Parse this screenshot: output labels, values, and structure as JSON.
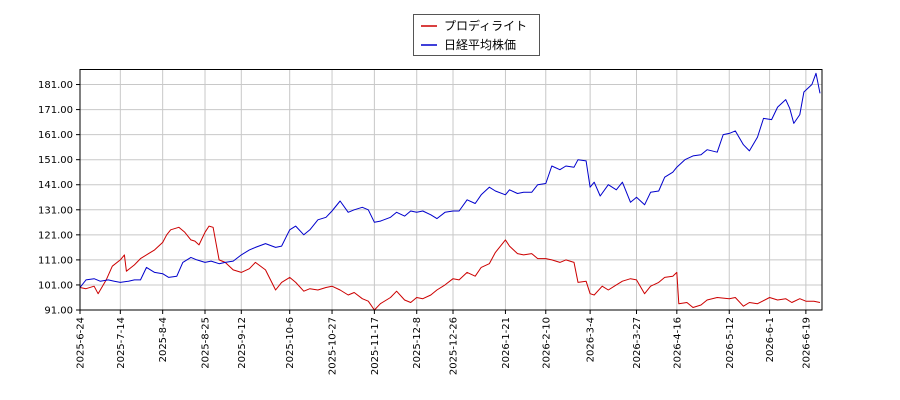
{
  "chart_data": {
    "type": "line",
    "title": "",
    "xlabel": "",
    "ylabel": "",
    "ylim": [
      91,
      187
    ],
    "yticks": [
      "91.00",
      "101.00",
      "111.00",
      "121.00",
      "131.00",
      "141.00",
      "151.00",
      "161.00",
      "171.00",
      "181.00"
    ],
    "xlim": [
      "2025-06-24",
      "2026-06-27"
    ],
    "xticks": [
      "2025-6-24",
      "2025-7-14",
      "2025-8-4",
      "2025-8-25",
      "2025-9-12",
      "2025-10-6",
      "2025-10-27",
      "2025-11-17",
      "2025-12-8",
      "2025-12-26",
      "2026-1-21",
      "2026-2-10",
      "2026-3-4",
      "2026-3-27",
      "2026-4-16",
      "2026-5-12",
      "2026-6-1",
      "2026-6-19"
    ],
    "grid": true,
    "legend": "top-center",
    "series": [
      {
        "name": "プロディライト",
        "color": "#cc0000",
        "points": [
          [
            "2025-06-24",
            100.0
          ],
          [
            "2025-06-27",
            99.5
          ],
          [
            "2025-07-01",
            100.5
          ],
          [
            "2025-07-03",
            97.5
          ],
          [
            "2025-07-07",
            103.0
          ],
          [
            "2025-07-10",
            108.5
          ],
          [
            "2025-07-14",
            111.0
          ],
          [
            "2025-07-16",
            113.0
          ],
          [
            "2025-07-17",
            106.5
          ],
          [
            "2025-07-21",
            109.0
          ],
          [
            "2025-07-24",
            111.5
          ],
          [
            "2025-07-28",
            113.5
          ],
          [
            "2025-07-31",
            115.0
          ],
          [
            "2025-08-04",
            118.0
          ],
          [
            "2025-08-06",
            121.0
          ],
          [
            "2025-08-08",
            123.0
          ],
          [
            "2025-08-12",
            124.0
          ],
          [
            "2025-08-15",
            122.0
          ],
          [
            "2025-08-18",
            119.0
          ],
          [
            "2025-08-20",
            118.5
          ],
          [
            "2025-08-22",
            117.0
          ],
          [
            "2025-08-25",
            122.0
          ],
          [
            "2025-08-27",
            124.5
          ],
          [
            "2025-08-29",
            124.0
          ],
          [
            "2025-09-01",
            111.0
          ],
          [
            "2025-09-04",
            110.0
          ],
          [
            "2025-09-08",
            107.0
          ],
          [
            "2025-09-12",
            106.0
          ],
          [
            "2025-09-16",
            107.5
          ],
          [
            "2025-09-19",
            110.0
          ],
          [
            "2025-09-24",
            107.0
          ],
          [
            "2025-09-29",
            99.0
          ],
          [
            "2025-10-02",
            102.0
          ],
          [
            "2025-10-06",
            104.0
          ],
          [
            "2025-10-09",
            102.0
          ],
          [
            "2025-10-13",
            98.5
          ],
          [
            "2025-10-16",
            99.5
          ],
          [
            "2025-10-20",
            99.0
          ],
          [
            "2025-10-24",
            100.0
          ],
          [
            "2025-10-27",
            100.5
          ],
          [
            "2025-10-31",
            99.0
          ],
          [
            "2025-11-04",
            97.0
          ],
          [
            "2025-11-07",
            98.0
          ],
          [
            "2025-11-11",
            95.5
          ],
          [
            "2025-11-14",
            94.5
          ],
          [
            "2025-11-17",
            91.0
          ],
          [
            "2025-11-20",
            93.5
          ],
          [
            "2025-11-25",
            96.0
          ],
          [
            "2025-11-28",
            98.5
          ],
          [
            "2025-12-02",
            95.0
          ],
          [
            "2025-12-05",
            94.0
          ],
          [
            "2025-12-08",
            96.0
          ],
          [
            "2025-12-11",
            95.5
          ],
          [
            "2025-12-15",
            97.0
          ],
          [
            "2025-12-18",
            99.0
          ],
          [
            "2025-12-22",
            101.0
          ],
          [
            "2025-12-26",
            103.5
          ],
          [
            "2025-12-29",
            103.0
          ],
          [
            "2026-01-02",
            106.0
          ],
          [
            "2026-01-06",
            104.5
          ],
          [
            "2026-01-09",
            108.0
          ],
          [
            "2026-01-13",
            109.5
          ],
          [
            "2026-01-16",
            114.0
          ],
          [
            "2026-01-21",
            119.0
          ],
          [
            "2026-01-23",
            116.5
          ],
          [
            "2026-01-27",
            113.5
          ],
          [
            "2026-01-30",
            113.0
          ],
          [
            "2026-02-03",
            113.5
          ],
          [
            "2026-02-06",
            111.5
          ],
          [
            "2026-02-10",
            111.5
          ],
          [
            "2026-02-13",
            111.0
          ],
          [
            "2026-02-17",
            110.0
          ],
          [
            "2026-02-20",
            111.0
          ],
          [
            "2026-02-24",
            110.0
          ],
          [
            "2026-02-26",
            102.0
          ],
          [
            "2026-03-02",
            102.5
          ],
          [
            "2026-03-04",
            97.5
          ],
          [
            "2026-03-06",
            97.0
          ],
          [
            "2026-03-10",
            100.5
          ],
          [
            "2026-03-13",
            99.0
          ],
          [
            "2026-03-17",
            101.0
          ],
          [
            "2026-03-20",
            102.5
          ],
          [
            "2026-03-24",
            103.5
          ],
          [
            "2026-03-27",
            103.0
          ],
          [
            "2026-03-31",
            97.5
          ],
          [
            "2026-04-03",
            100.5
          ],
          [
            "2026-04-07",
            102.0
          ],
          [
            "2026-04-10",
            104.0
          ],
          [
            "2026-04-14",
            104.5
          ],
          [
            "2026-04-16",
            106.0
          ],
          [
            "2026-04-17",
            93.5
          ],
          [
            "2026-04-21",
            94.0
          ],
          [
            "2026-04-24",
            92.0
          ],
          [
            "2026-04-28",
            93.0
          ],
          [
            "2026-05-01",
            95.0
          ],
          [
            "2026-05-06",
            96.0
          ],
          [
            "2026-05-12",
            95.5
          ],
          [
            "2026-05-15",
            96.0
          ],
          [
            "2026-05-19",
            92.5
          ],
          [
            "2026-05-22",
            94.0
          ],
          [
            "2026-05-26",
            93.5
          ],
          [
            "2026-06-01",
            96.0
          ],
          [
            "2026-06-05",
            95.0
          ],
          [
            "2026-06-09",
            95.5
          ],
          [
            "2026-06-12",
            94.0
          ],
          [
            "2026-06-16",
            95.5
          ],
          [
            "2026-06-19",
            94.5
          ],
          [
            "2026-06-23",
            94.5
          ],
          [
            "2026-06-26",
            94.0
          ]
        ]
      },
      {
        "name": "日経平均株価",
        "color": "#0000cc",
        "points": [
          [
            "2025-06-24",
            100.0
          ],
          [
            "2025-06-27",
            103.0
          ],
          [
            "2025-07-01",
            103.5
          ],
          [
            "2025-07-04",
            102.5
          ],
          [
            "2025-07-08",
            103.0
          ],
          [
            "2025-07-11",
            102.5
          ],
          [
            "2025-07-14",
            102.0
          ],
          [
            "2025-07-18",
            102.5
          ],
          [
            "2025-07-21",
            103.0
          ],
          [
            "2025-07-24",
            103.0
          ],
          [
            "2025-07-27",
            108.0
          ],
          [
            "2025-07-31",
            106.0
          ],
          [
            "2025-08-04",
            105.5
          ],
          [
            "2025-08-07",
            104.0
          ],
          [
            "2025-08-11",
            104.5
          ],
          [
            "2025-08-14",
            110.0
          ],
          [
            "2025-08-18",
            112.0
          ],
          [
            "2025-08-21",
            111.0
          ],
          [
            "2025-08-25",
            110.0
          ],
          [
            "2025-08-28",
            110.5
          ],
          [
            "2025-09-01",
            109.5
          ],
          [
            "2025-09-04",
            110.0
          ],
          [
            "2025-09-08",
            110.5
          ],
          [
            "2025-09-12",
            113.0
          ],
          [
            "2025-09-16",
            115.0
          ],
          [
            "2025-09-19",
            116.0
          ],
          [
            "2025-09-24",
            117.5
          ],
          [
            "2025-09-29",
            116.0
          ],
          [
            "2025-10-02",
            116.5
          ],
          [
            "2025-10-06",
            123.0
          ],
          [
            "2025-10-09",
            124.5
          ],
          [
            "2025-10-13",
            121.0
          ],
          [
            "2025-10-16",
            123.0
          ],
          [
            "2025-10-20",
            127.0
          ],
          [
            "2025-10-24",
            128.0
          ],
          [
            "2025-10-27",
            130.5
          ],
          [
            "2025-10-31",
            134.5
          ],
          [
            "2025-11-04",
            130.0
          ],
          [
            "2025-11-07",
            131.0
          ],
          [
            "2025-11-11",
            132.0
          ],
          [
            "2025-11-14",
            131.0
          ],
          [
            "2025-11-17",
            126.0
          ],
          [
            "2025-11-20",
            126.5
          ],
          [
            "2025-11-25",
            128.0
          ],
          [
            "2025-11-28",
            130.0
          ],
          [
            "2025-12-02",
            128.5
          ],
          [
            "2025-12-05",
            130.5
          ],
          [
            "2025-12-08",
            130.0
          ],
          [
            "2025-12-11",
            130.5
          ],
          [
            "2025-12-15",
            129.0
          ],
          [
            "2025-12-18",
            127.5
          ],
          [
            "2025-12-22",
            130.0
          ],
          [
            "2025-12-26",
            130.5
          ],
          [
            "2025-12-29",
            130.5
          ],
          [
            "2026-01-02",
            135.0
          ],
          [
            "2026-01-06",
            133.5
          ],
          [
            "2026-01-09",
            137.0
          ],
          [
            "2026-01-13",
            140.0
          ],
          [
            "2026-01-16",
            138.5
          ],
          [
            "2026-01-21",
            137.0
          ],
          [
            "2026-01-23",
            139.0
          ],
          [
            "2026-01-27",
            137.5
          ],
          [
            "2026-01-30",
            138.0
          ],
          [
            "2026-02-03",
            138.0
          ],
          [
            "2026-02-06",
            141.0
          ],
          [
            "2026-02-10",
            141.5
          ],
          [
            "2026-02-13",
            148.5
          ],
          [
            "2026-02-17",
            147.0
          ],
          [
            "2026-02-20",
            148.5
          ],
          [
            "2026-02-24",
            148.0
          ],
          [
            "2026-02-26",
            151.0
          ],
          [
            "2026-03-02",
            150.5
          ],
          [
            "2026-03-04",
            140.0
          ],
          [
            "2026-03-06",
            142.0
          ],
          [
            "2026-03-09",
            136.5
          ],
          [
            "2026-03-13",
            141.0
          ],
          [
            "2026-03-17",
            139.0
          ],
          [
            "2026-03-20",
            142.0
          ],
          [
            "2026-03-24",
            134.0
          ],
          [
            "2026-03-27",
            136.0
          ],
          [
            "2026-03-31",
            133.0
          ],
          [
            "2026-04-03",
            138.0
          ],
          [
            "2026-04-07",
            138.5
          ],
          [
            "2026-04-10",
            144.0
          ],
          [
            "2026-04-14",
            146.0
          ],
          [
            "2026-04-16",
            148.0
          ],
          [
            "2026-04-20",
            151.0
          ],
          [
            "2026-04-24",
            152.5
          ],
          [
            "2026-04-28",
            153.0
          ],
          [
            "2026-05-01",
            155.0
          ],
          [
            "2026-05-06",
            154.0
          ],
          [
            "2026-05-09",
            161.0
          ],
          [
            "2026-05-12",
            161.5
          ],
          [
            "2026-05-15",
            162.5
          ],
          [
            "2026-05-19",
            157.0
          ],
          [
            "2026-05-22",
            154.5
          ],
          [
            "2026-05-26",
            160.0
          ],
          [
            "2026-05-29",
            167.5
          ],
          [
            "2026-06-02",
            167.0
          ],
          [
            "2026-06-05",
            172.0
          ],
          [
            "2026-06-09",
            175.0
          ],
          [
            "2026-06-11",
            171.5
          ],
          [
            "2026-06-13",
            165.5
          ],
          [
            "2026-06-16",
            169.0
          ],
          [
            "2026-06-18",
            178.0
          ],
          [
            "2026-06-22",
            181.0
          ],
          [
            "2026-06-24",
            185.5
          ],
          [
            "2026-06-26",
            177.5
          ]
        ]
      }
    ]
  }
}
